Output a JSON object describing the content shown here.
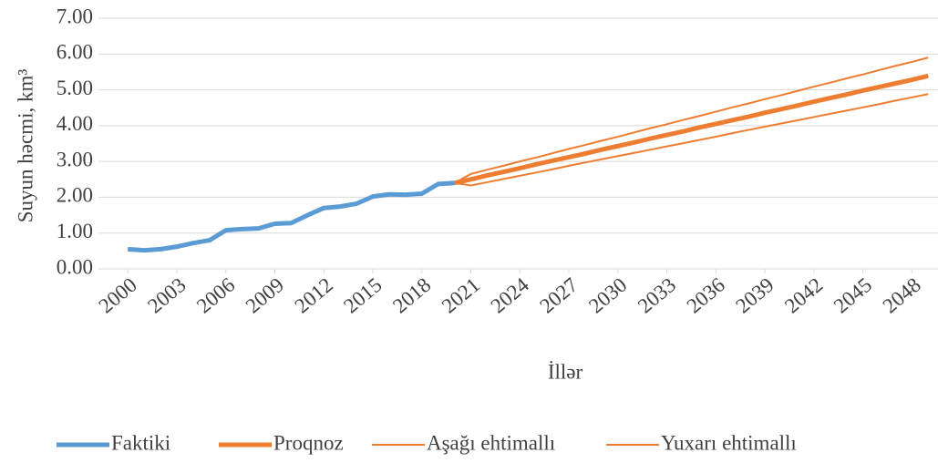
{
  "chart_data": {
    "type": "line",
    "x_label": "İllər",
    "y_label": "Suyun həcmi, km³",
    "x": [
      2000,
      2001,
      2002,
      2003,
      2004,
      2005,
      2006,
      2007,
      2008,
      2009,
      2010,
      2011,
      2012,
      2013,
      2014,
      2015,
      2016,
      2017,
      2018,
      2019,
      2020,
      2021,
      2022,
      2023,
      2024,
      2025,
      2026,
      2027,
      2028,
      2029,
      2030,
      2031,
      2032,
      2033,
      2034,
      2035,
      2036,
      2037,
      2038,
      2039,
      2040,
      2041,
      2042,
      2043,
      2044,
      2045,
      2046,
      2047,
      2048,
      2049
    ],
    "xlim": [
      1998.2,
      2049.6
    ],
    "xticks": [
      2000,
      2003,
      2006,
      2009,
      2012,
      2015,
      2018,
      2021,
      2024,
      2027,
      2030,
      2033,
      2036,
      2039,
      2042,
      2045,
      2048
    ],
    "ylim": [
      0,
      7
    ],
    "yticks": [
      {
        "value": 0,
        "label": "0.00"
      },
      {
        "value": 1,
        "label": "1.00"
      },
      {
        "value": 2,
        "label": "2.00"
      },
      {
        "value": 3,
        "label": "3.00"
      },
      {
        "value": 4,
        "label": "4.00"
      },
      {
        "value": 5,
        "label": "5.00"
      },
      {
        "value": 6,
        "label": "6.00"
      },
      {
        "value": 7,
        "label": "7.00"
      }
    ],
    "grid": true,
    "legend": "bottom",
    "series": [
      {
        "name": "Faktiki",
        "color": "#5b9bd5",
        "width": 5,
        "values": [
          0.55,
          0.52,
          0.55,
          0.62,
          0.72,
          0.8,
          1.08,
          1.11,
          1.13,
          1.26,
          1.28,
          1.5,
          1.7,
          1.74,
          1.82,
          2.02,
          2.08,
          2.07,
          2.1,
          2.37,
          2.4,
          null,
          null,
          null,
          null,
          null,
          null,
          null,
          null,
          null,
          null,
          null,
          null,
          null,
          null,
          null,
          null,
          null,
          null,
          null,
          null,
          null,
          null,
          null,
          null,
          null,
          null,
          null,
          null,
          null
        ]
      },
      {
        "name": "Proqnoz",
        "color": "#ed7d31",
        "width": 5,
        "values": [
          null,
          null,
          null,
          null,
          null,
          null,
          null,
          null,
          null,
          null,
          null,
          null,
          null,
          null,
          null,
          null,
          null,
          null,
          null,
          null,
          2.4,
          2.5,
          2.61,
          2.71,
          2.81,
          2.92,
          3.02,
          3.12,
          3.22,
          3.33,
          3.43,
          3.53,
          3.64,
          3.74,
          3.84,
          3.95,
          4.05,
          4.15,
          4.25,
          4.36,
          4.46,
          4.56,
          4.67,
          4.77,
          4.87,
          4.98,
          5.08,
          5.18,
          5.28,
          5.39
        ]
      },
      {
        "name": "Aşağı ehtimallı",
        "color": "#ed7d31",
        "width": 2,
        "values": [
          null,
          null,
          null,
          null,
          null,
          null,
          null,
          null,
          null,
          null,
          null,
          null,
          null,
          null,
          null,
          null,
          null,
          null,
          null,
          null,
          2.4,
          2.33,
          2.42,
          2.51,
          2.6,
          2.69,
          2.78,
          2.88,
          2.97,
          3.06,
          3.15,
          3.24,
          3.33,
          3.42,
          3.51,
          3.6,
          3.69,
          3.79,
          3.88,
          3.97,
          4.06,
          4.15,
          4.24,
          4.33,
          4.42,
          4.51,
          4.6,
          4.7,
          4.79,
          4.88
        ]
      },
      {
        "name": "Yuxarı ehtimallı",
        "color": "#ed7d31",
        "width": 2,
        "values": [
          null,
          null,
          null,
          null,
          null,
          null,
          null,
          null,
          null,
          null,
          null,
          null,
          null,
          null,
          null,
          null,
          null,
          null,
          null,
          null,
          2.4,
          2.65,
          2.77,
          2.88,
          3.0,
          3.11,
          3.23,
          3.35,
          3.46,
          3.58,
          3.69,
          3.81,
          3.93,
          4.04,
          4.16,
          4.27,
          4.39,
          4.51,
          4.62,
          4.74,
          4.85,
          4.97,
          5.09,
          5.2,
          5.32,
          5.43,
          5.55,
          5.67,
          5.78,
          5.9
        ]
      }
    ]
  }
}
